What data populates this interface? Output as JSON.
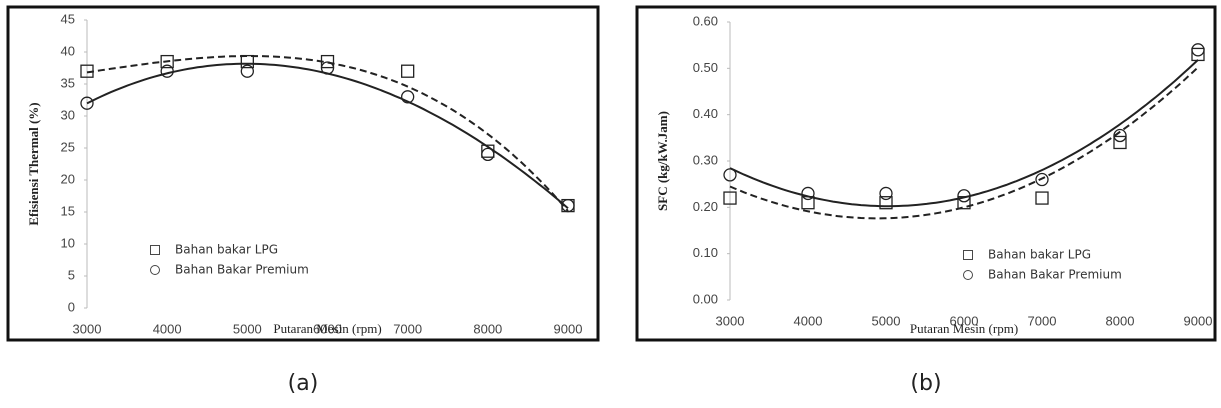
{
  "chart_data": [
    {
      "type": "scatter",
      "caption": "(a)",
      "x_label": "Putaran Mesin (rpm)",
      "y_label": "Efisiensi Thermal (%)",
      "x": [
        3000,
        4000,
        5000,
        6000,
        7000,
        8000,
        9000
      ],
      "xlim": [
        3000,
        9000
      ],
      "xticks": [
        3000,
        4000,
        5000,
        6000,
        7000,
        8000,
        9000
      ],
      "ylim": [
        0,
        45
      ],
      "yticks": [
        0,
        5,
        10,
        15,
        20,
        25,
        30,
        35,
        40,
        45
      ],
      "legend": "lower-left",
      "trendline_degree": 3,
      "series": [
        {
          "name": "Bahan bakar LPG",
          "color": "#222222",
          "marker": "square",
          "trendline": "dashed",
          "values": [
            37,
            38.5,
            38.5,
            38.5,
            37,
            24.5,
            16
          ]
        },
        {
          "name": "Bahan Bakar Premium",
          "color": "#222222",
          "marker": "circle",
          "trendline": "solid",
          "values": [
            32,
            37,
            37,
            37.5,
            33,
            24,
            16
          ]
        }
      ]
    },
    {
      "type": "scatter",
      "caption": "(b)",
      "x_label": "Putaran Mesin (rpm)",
      "y_label": "SFC (kg/kW.Jam)",
      "x": [
        3000,
        4000,
        5000,
        6000,
        7000,
        8000,
        9000
      ],
      "xlim": [
        3000,
        9000
      ],
      "xticks": [
        3000,
        4000,
        5000,
        6000,
        7000,
        8000,
        9000
      ],
      "ylim": [
        0,
        0.6
      ],
      "yticks": [
        {
          "value": 0,
          "label": "0.00"
        },
        {
          "value": 0.1,
          "label": "0.10"
        },
        {
          "value": 0.2,
          "label": "0.20"
        },
        {
          "value": 0.3,
          "label": "0.30"
        },
        {
          "value": 0.4,
          "label": "0.40"
        },
        {
          "value": 0.5,
          "label": "0.50"
        },
        {
          "value": 0.6,
          "label": "0.60"
        }
      ],
      "legend": "lower-right",
      "trendline_degree": 2,
      "series": [
        {
          "name": "Bahan bakar LPG",
          "color": "#222222",
          "marker": "square",
          "trendline": "dashed",
          "values": [
            0.22,
            0.21,
            0.21,
            0.21,
            0.22,
            0.34,
            0.53
          ]
        },
        {
          "name": "Bahan Bakar Premium",
          "color": "#222222",
          "marker": "circle",
          "trendline": "solid",
          "values": [
            0.27,
            0.23,
            0.23,
            0.225,
            0.26,
            0.355,
            0.54
          ]
        }
      ]
    }
  ]
}
